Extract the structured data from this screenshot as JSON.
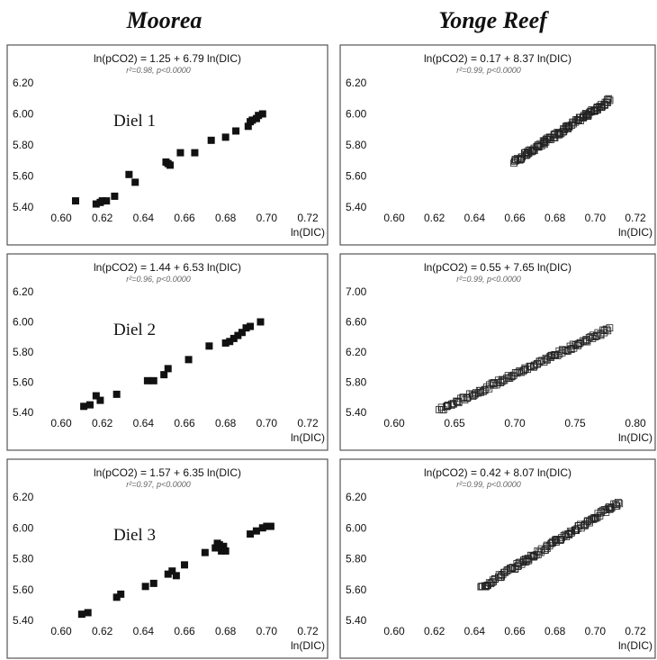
{
  "columns": [
    "Moorea",
    "Yonge Reef"
  ],
  "chart_data": [
    {
      "type": "scatter",
      "site": "Moorea",
      "annotation": "Diel 1",
      "equation": "ln(pCO2) = 1.25 + 6.79 ln(DIC)",
      "stats": "r²=0.98, p<0.0000",
      "xlabel": "ln(DIC)",
      "ylabel": "",
      "xlim": [
        0.6,
        0.72
      ],
      "ylim": [
        5.4,
        6.2
      ],
      "xticks": [
        "0.60",
        "0.62",
        "0.64",
        "0.66",
        "0.68",
        "0.70",
        "0.72"
      ],
      "yticks": [
        "5.40",
        "5.60",
        "5.80",
        "6.00",
        "6.20"
      ],
      "marker": "filled-square",
      "x": [
        0.607,
        0.617,
        0.619,
        0.62,
        0.622,
        0.626,
        0.633,
        0.636,
        0.651,
        0.652,
        0.653,
        0.658,
        0.665,
        0.673,
        0.68,
        0.685,
        0.691,
        0.692,
        0.693,
        0.695,
        0.696,
        0.698
      ],
      "y": [
        5.44,
        5.42,
        5.43,
        5.44,
        5.44,
        5.47,
        5.61,
        5.56,
        5.69,
        5.68,
        5.67,
        5.75,
        5.75,
        5.83,
        5.85,
        5.89,
        5.92,
        5.95,
        5.96,
        5.97,
        5.99,
        6.0
      ]
    },
    {
      "type": "scatter",
      "site": "Yonge Reef",
      "annotation": "",
      "equation": "ln(pCO2) = 0.17 + 8.37 ln(DIC)",
      "stats": "r²=0.99, p<0.0000",
      "xlabel": "ln(DIC)",
      "ylabel": "",
      "xlim": [
        0.6,
        0.72
      ],
      "ylim": [
        5.4,
        6.2
      ],
      "xticks": [
        "0.60",
        "0.62",
        "0.64",
        "0.66",
        "0.68",
        "0.70",
        "0.72"
      ],
      "yticks": [
        "5.40",
        "5.60",
        "5.80",
        "6.00",
        "6.20"
      ],
      "marker": "open-square",
      "line_range": [
        0.66,
        0.707
      ]
    },
    {
      "type": "scatter",
      "site": "Moorea",
      "annotation": "Diel 2",
      "equation": "ln(pCO2) = 1.44 + 6.53 ln(DIC)",
      "stats": "r²=0.96, p<0.0000",
      "xlabel": "ln(DIC)",
      "ylabel": "",
      "xlim": [
        0.6,
        0.72
      ],
      "ylim": [
        5.4,
        6.2
      ],
      "xticks": [
        "0.60",
        "0.62",
        "0.64",
        "0.66",
        "0.68",
        "0.70",
        "0.72"
      ],
      "yticks": [
        "5.40",
        "5.60",
        "5.80",
        "6.00",
        "6.20"
      ],
      "marker": "filled-square",
      "x": [
        0.611,
        0.614,
        0.617,
        0.619,
        0.627,
        0.642,
        0.645,
        0.65,
        0.652,
        0.662,
        0.672,
        0.68,
        0.682,
        0.684,
        0.686,
        0.688,
        0.69,
        0.692,
        0.697
      ],
      "y": [
        5.44,
        5.45,
        5.51,
        5.48,
        5.52,
        5.61,
        5.61,
        5.65,
        5.69,
        5.75,
        5.84,
        5.86,
        5.87,
        5.89,
        5.91,
        5.93,
        5.96,
        5.97,
        6.0
      ]
    },
    {
      "type": "scatter",
      "site": "Yonge Reef",
      "annotation": "",
      "equation": "ln(pCO2) = 0.55 + 7.65 ln(DIC)",
      "stats": "r²=0.99, p<0.0000",
      "xlabel": "ln(DIC)",
      "ylabel": "",
      "xlim": [
        0.6,
        0.8
      ],
      "ylim": [
        5.4,
        7.0
      ],
      "xticks": [
        "0.60",
        "0.65",
        "0.70",
        "0.75",
        "0.80"
      ],
      "yticks": [
        "5.40",
        "5.80",
        "6.20",
        "6.60",
        "7.00"
      ],
      "marker": "open-square",
      "line_range": [
        0.638,
        0.778
      ]
    },
    {
      "type": "scatter",
      "site": "Moorea",
      "annotation": "Diel 3",
      "equation": "ln(pCO2) = 1.57 + 6.35 ln(DIC)",
      "stats": "r²=0.97, p<0.0000",
      "xlabel": "ln(DIC)",
      "ylabel": "",
      "xlim": [
        0.6,
        0.72
      ],
      "ylim": [
        5.4,
        6.2
      ],
      "xticks": [
        "0.60",
        "0.62",
        "0.64",
        "0.66",
        "0.68",
        "0.70",
        "0.72"
      ],
      "yticks": [
        "5.40",
        "5.60",
        "5.80",
        "6.00",
        "6.20"
      ],
      "marker": "filled-square",
      "x": [
        0.61,
        0.613,
        0.627,
        0.629,
        0.641,
        0.645,
        0.652,
        0.654,
        0.656,
        0.66,
        0.67,
        0.675,
        0.676,
        0.677,
        0.678,
        0.679,
        0.68,
        0.692,
        0.695,
        0.698,
        0.7,
        0.702
      ],
      "y": [
        5.44,
        5.45,
        5.55,
        5.57,
        5.62,
        5.64,
        5.7,
        5.72,
        5.69,
        5.76,
        5.84,
        5.87,
        5.9,
        5.89,
        5.85,
        5.88,
        5.85,
        5.96,
        5.98,
        6.0,
        6.01,
        6.01
      ]
    },
    {
      "type": "scatter",
      "site": "Yonge Reef",
      "annotation": "",
      "equation": "ln(pCO2) = 0.42 + 8.07 ln(DIC)",
      "stats": "r²=0.99, p<0.0000",
      "xlabel": "ln(DIC)",
      "ylabel": "",
      "xlim": [
        0.6,
        0.72
      ],
      "ylim": [
        5.4,
        6.2
      ],
      "xticks": [
        "0.60",
        "0.62",
        "0.64",
        "0.66",
        "0.68",
        "0.70",
        "0.72"
      ],
      "yticks": [
        "5.40",
        "5.60",
        "5.80",
        "6.00",
        "6.20"
      ],
      "marker": "open-square",
      "line_range": [
        0.643,
        0.712
      ]
    }
  ]
}
